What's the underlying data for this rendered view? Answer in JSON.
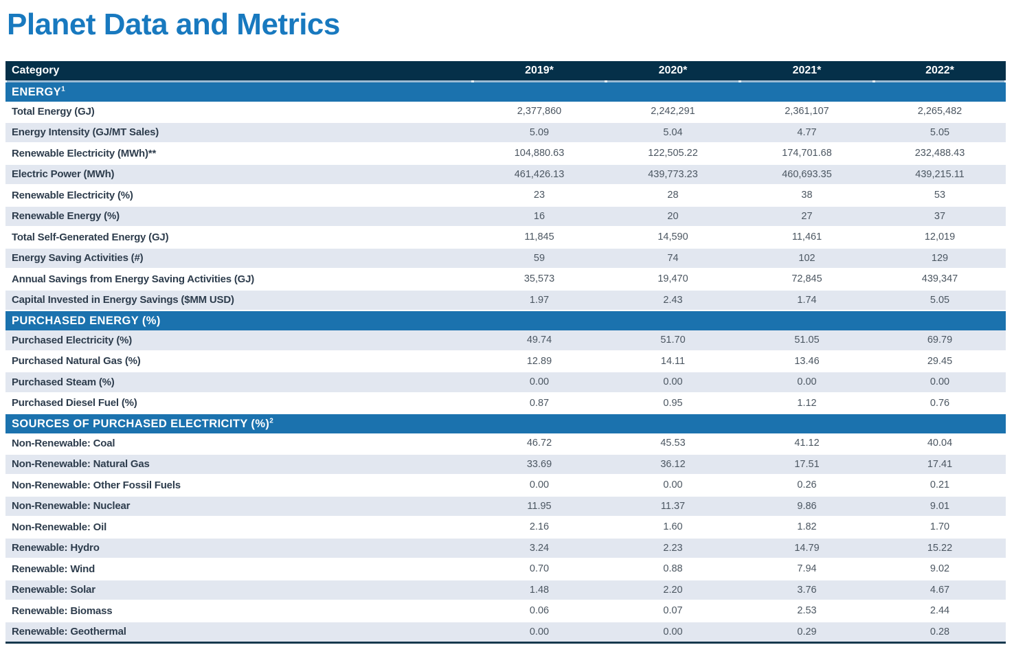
{
  "page_title": "Planet Data and Metrics",
  "colors": {
    "title_blue": "#1879bf",
    "header_bar_bg": "#053049",
    "section_bar_bg": "#1b72ae",
    "row_stripe_bg": "#e2e7f0",
    "header_underline": "#9cbbd4",
    "label_text": "#2e3d4d",
    "value_text": "#4b5661"
  },
  "table": {
    "columns": [
      "Category",
      "2019*",
      "2020*",
      "2021*",
      "2022*"
    ],
    "sections": [
      {
        "title": "ENERGY",
        "title_sup": "1",
        "rows": [
          {
            "label": "Total Energy (GJ)",
            "values": [
              "2,377,860",
              "2,242,291",
              "2,361,107",
              "2,265,482"
            ]
          },
          {
            "label": "Energy Intensity (GJ/MT Sales)",
            "values": [
              "5.09",
              "5.04",
              "4.77",
              "5.05"
            ]
          },
          {
            "label": "Renewable Electricity (MWh)**",
            "values": [
              "104,880.63",
              "122,505.22",
              "174,701.68",
              "232,488.43"
            ]
          },
          {
            "label": "Electric Power (MWh)",
            "values": [
              "461,426.13",
              "439,773.23",
              "460,693.35",
              "439,215.11"
            ]
          },
          {
            "label": "Renewable Electricity (%)",
            "values": [
              "23",
              "28",
              "38",
              "53"
            ]
          },
          {
            "label": "Renewable Energy (%)",
            "values": [
              "16",
              "20",
              "27",
              "37"
            ]
          },
          {
            "label": "Total Self-Generated Energy (GJ)",
            "values": [
              "11,845",
              "14,590",
              "11,461",
              "12,019"
            ]
          },
          {
            "label": "Energy Saving Activities (#)",
            "values": [
              "59",
              "74",
              "102",
              "129"
            ]
          },
          {
            "label": "Annual Savings from Energy Saving Activities (GJ)",
            "values": [
              "35,573",
              "19,470",
              "72,845",
              "439,347"
            ]
          },
          {
            "label": "Capital Invested in Energy Savings ($MM USD)",
            "values": [
              "1.97",
              "2.43",
              "1.74",
              "5.05"
            ]
          }
        ]
      },
      {
        "title": "PURCHASED ENERGY (%)",
        "title_sup": "",
        "rows": [
          {
            "label": "Purchased Electricity (%)",
            "values": [
              "49.74",
              "51.70",
              "51.05",
              "69.79"
            ]
          },
          {
            "label": "Purchased Natural Gas (%)",
            "values": [
              "12.89",
              "14.11",
              "13.46",
              "29.45"
            ]
          },
          {
            "label": "Purchased Steam (%)",
            "values": [
              "0.00",
              "0.00",
              "0.00",
              "0.00"
            ]
          },
          {
            "label": "Purchased Diesel Fuel (%)",
            "values": [
              "0.87",
              "0.95",
              "1.12",
              "0.76"
            ]
          }
        ]
      },
      {
        "title": "SOURCES OF PURCHASED ELECTRICITY (%)",
        "title_sup": "2",
        "rows": [
          {
            "label": "Non-Renewable: Coal",
            "values": [
              "46.72",
              "45.53",
              "41.12",
              "40.04"
            ]
          },
          {
            "label": "Non-Renewable: Natural Gas",
            "values": [
              "33.69",
              "36.12",
              "17.51",
              "17.41"
            ]
          },
          {
            "label": "Non-Renewable: Other Fossil Fuels",
            "values": [
              "0.00",
              "0.00",
              "0.26",
              "0.21"
            ]
          },
          {
            "label": "Non-Renewable: Nuclear",
            "values": [
              "11.95",
              "11.37",
              "9.86",
              "9.01"
            ]
          },
          {
            "label": "Non-Renewable: Oil",
            "values": [
              "2.16",
              "1.60",
              "1.82",
              "1.70"
            ]
          },
          {
            "label": "Renewable: Hydro",
            "values": [
              "3.24",
              "2.23",
              "14.79",
              "15.22"
            ]
          },
          {
            "label": "Renewable: Wind",
            "values": [
              "0.70",
              "0.88",
              "7.94",
              "9.02"
            ]
          },
          {
            "label": "Renewable: Solar",
            "values": [
              "1.48",
              "2.20",
              "3.76",
              "4.67"
            ]
          },
          {
            "label": "Renewable: Biomass",
            "values": [
              "0.06",
              "0.07",
              "2.53",
              "2.44"
            ]
          },
          {
            "label": "Renewable: Geothermal",
            "values": [
              "0.00",
              "0.00",
              "0.29",
              "0.28"
            ]
          }
        ]
      }
    ]
  }
}
